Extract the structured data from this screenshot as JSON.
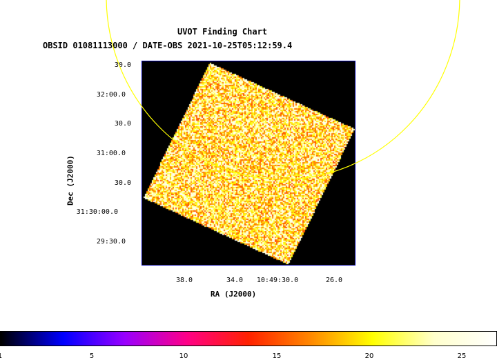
{
  "chart_data": {
    "type": "heatmap",
    "title": "UVOT Finding Chart",
    "subtitle": "OBSID 01081113000 / DATE-OBS 2021-10-25T05:12:59.4",
    "xlabel": "RA (J2000)",
    "ylabel": "Dec (J2000)",
    "x_ticks": [
      "38.0",
      "34.0",
      "10:49:30.0",
      "26.0"
    ],
    "y_ticks": [
      "30.0",
      "32:00.0",
      "30.0",
      "31:00.0",
      "30.0",
      "31:30:00.0",
      "29:30.0"
    ],
    "colorbar": {
      "ticks": [
        "1",
        "5",
        "10",
        "15",
        "20",
        "25"
      ],
      "range": [
        1,
        27
      ],
      "colormap": [
        "#000000",
        "#0000ff",
        "#9900ff",
        "#ff0088",
        "#ff2200",
        "#ff8800",
        "#ffff00",
        "#ffffcc",
        "#ffffff"
      ]
    },
    "overlay_circle_color": "#ffff00",
    "background_color": "#000000"
  }
}
